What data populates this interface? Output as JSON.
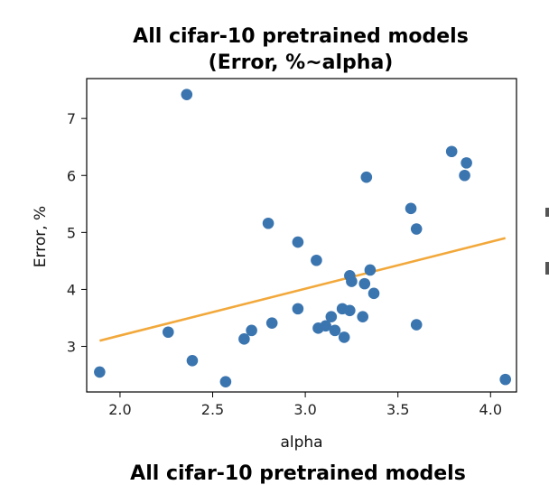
{
  "chart_data": {
    "type": "scatter",
    "title": "All cifar-10 pretrained models",
    "subtitle": "(Error, %~alpha)",
    "xlabel": "alpha",
    "ylabel": "Error, %",
    "xlim": [
      1.82,
      4.14
    ],
    "ylim": [
      2.2,
      7.7
    ],
    "xticks": [
      "2.0",
      "2.5",
      "3.0",
      "3.5",
      "4.0"
    ],
    "yticks": [
      "3",
      "4",
      "5",
      "6",
      "7"
    ],
    "grid": false,
    "point_color": "#3b75af",
    "fit_color": "#f2a83a",
    "points": [
      {
        "x": 1.89,
        "y": 2.55
      },
      {
        "x": 2.26,
        "y": 3.25
      },
      {
        "x": 2.36,
        "y": 7.42
      },
      {
        "x": 2.39,
        "y": 2.75
      },
      {
        "x": 2.57,
        "y": 2.38
      },
      {
        "x": 2.67,
        "y": 3.13
      },
      {
        "x": 2.71,
        "y": 3.28
      },
      {
        "x": 2.8,
        "y": 5.16
      },
      {
        "x": 2.82,
        "y": 3.41
      },
      {
        "x": 2.96,
        "y": 3.66
      },
      {
        "x": 2.96,
        "y": 4.83
      },
      {
        "x": 3.06,
        "y": 4.51
      },
      {
        "x": 3.07,
        "y": 3.32
      },
      {
        "x": 3.11,
        "y": 3.36
      },
      {
        "x": 3.14,
        "y": 3.52
      },
      {
        "x": 3.16,
        "y": 3.28
      },
      {
        "x": 3.2,
        "y": 3.66
      },
      {
        "x": 3.21,
        "y": 3.16
      },
      {
        "x": 3.24,
        "y": 3.63
      },
      {
        "x": 3.24,
        "y": 4.24
      },
      {
        "x": 3.25,
        "y": 4.14
      },
      {
        "x": 3.31,
        "y": 3.52
      },
      {
        "x": 3.32,
        "y": 4.1
      },
      {
        "x": 3.33,
        "y": 5.97
      },
      {
        "x": 3.35,
        "y": 4.34
      },
      {
        "x": 3.37,
        "y": 3.93
      },
      {
        "x": 3.57,
        "y": 5.42
      },
      {
        "x": 3.6,
        "y": 5.06
      },
      {
        "x": 3.6,
        "y": 3.38
      },
      {
        "x": 3.79,
        "y": 6.42
      },
      {
        "x": 3.86,
        "y": 6.0
      },
      {
        "x": 3.87,
        "y": 6.22
      },
      {
        "x": 4.08,
        "y": 2.42
      }
    ],
    "fit_line": {
      "x": [
        1.89,
        4.08
      ],
      "y": [
        3.1,
        4.9
      ]
    },
    "next_title": "All cifar-10 pretrained models"
  }
}
